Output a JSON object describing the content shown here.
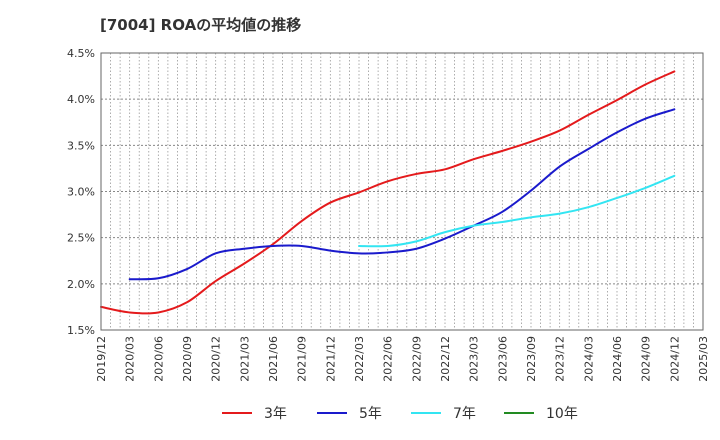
{
  "chart_data": {
    "type": "line",
    "title": "[7004]  ROAの平均値の推移",
    "xlabel": "",
    "ylabel": "",
    "ylim": [
      1.5,
      4.5
    ],
    "y_ticks": [
      "1.5%",
      "2.0%",
      "2.5%",
      "3.0%",
      "3.5%",
      "4.0%",
      "4.5%"
    ],
    "x_ticks": [
      "2019/12",
      "2020/03",
      "2020/06",
      "2020/09",
      "2020/12",
      "2021/03",
      "2021/06",
      "2021/09",
      "2021/12",
      "2022/03",
      "2022/06",
      "2022/09",
      "2022/12",
      "2023/03",
      "2023/06",
      "2023/09",
      "2023/12",
      "2024/03",
      "2024/06",
      "2024/09",
      "2024/12",
      "2025/03"
    ],
    "grid": true,
    "legend_position": "bottom",
    "series": [
      {
        "name": "3年",
        "color": "#e41a1c",
        "x": [
          "2019/12",
          "2020/03",
          "2020/06",
          "2020/09",
          "2020/12",
          "2021/03",
          "2021/06",
          "2021/09",
          "2021/12",
          "2022/03",
          "2022/06",
          "2022/09",
          "2022/12",
          "2023/03",
          "2023/06",
          "2023/09",
          "2023/12",
          "2024/03",
          "2024/06",
          "2024/09",
          "2024/12"
        ],
        "values": [
          1.75,
          1.69,
          1.69,
          1.8,
          2.03,
          2.22,
          2.43,
          2.68,
          2.88,
          2.99,
          3.11,
          3.19,
          3.24,
          3.35,
          3.44,
          3.54,
          3.66,
          3.83,
          3.99,
          4.16,
          4.3
        ]
      },
      {
        "name": "5年",
        "color": "#1a1acc",
        "x": [
          "2020/03",
          "2020/06",
          "2020/09",
          "2020/12",
          "2021/03",
          "2021/06",
          "2021/09",
          "2021/12",
          "2022/03",
          "2022/06",
          "2022/09",
          "2022/12",
          "2023/03",
          "2023/06",
          "2023/09",
          "2023/12",
          "2024/03",
          "2024/06",
          "2024/09",
          "2024/12"
        ],
        "values": [
          2.05,
          2.06,
          2.16,
          2.33,
          2.38,
          2.41,
          2.41,
          2.36,
          2.33,
          2.34,
          2.38,
          2.49,
          2.63,
          2.78,
          3.01,
          3.27,
          3.46,
          3.64,
          3.79,
          3.89
        ]
      },
      {
        "name": "7年",
        "color": "#33e5f2",
        "x": [
          "2022/03",
          "2022/06",
          "2022/09",
          "2022/12",
          "2023/03",
          "2023/06",
          "2023/09",
          "2023/12",
          "2024/03",
          "2024/06",
          "2024/09",
          "2024/12"
        ],
        "values": [
          2.41,
          2.41,
          2.46,
          2.56,
          2.63,
          2.67,
          2.72,
          2.76,
          2.83,
          2.93,
          3.04,
          3.17
        ]
      },
      {
        "name": "10年",
        "color": "#228b22",
        "x": [],
        "values": []
      }
    ]
  }
}
